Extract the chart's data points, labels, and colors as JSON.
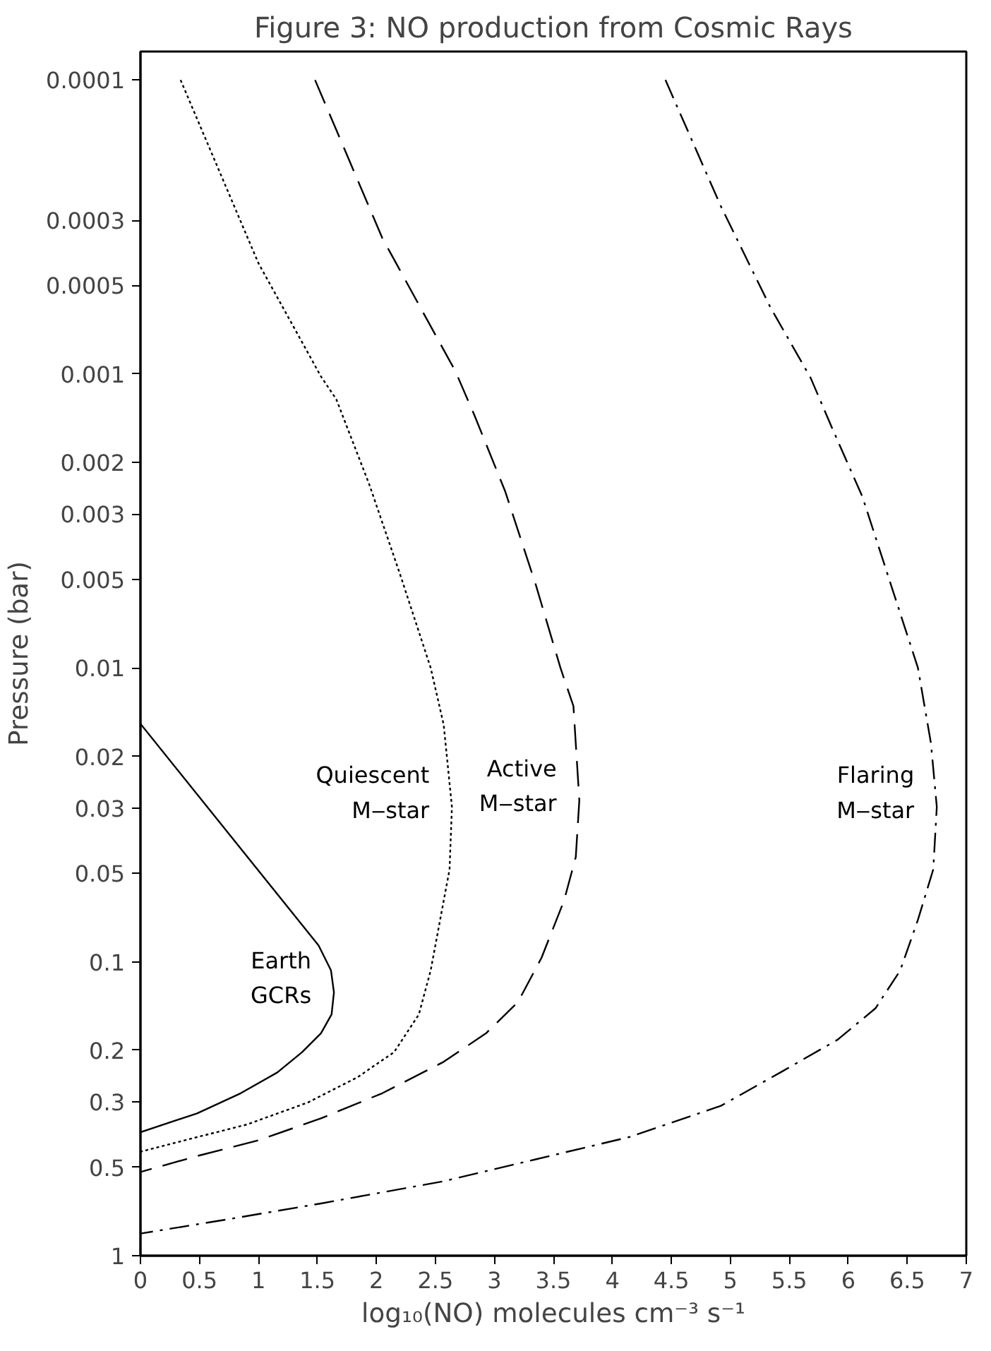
{
  "chart_data": {
    "type": "line",
    "title": "Figure 3: NO production from Cosmic Rays",
    "xlabel": "log₁₀(NO) molecules cm⁻³ s⁻¹",
    "ylabel": "Pressure (bar)",
    "log": "y",
    "grid": false,
    "marker": "none",
    "xlim": [
      0,
      7
    ],
    "xticks": [
      0,
      0.5,
      1,
      1.5,
      2,
      2.5,
      3,
      3.5,
      4,
      4.5,
      5,
      5.5,
      6,
      6.5,
      7
    ],
    "ylim": [
      1,
      8e-05
    ],
    "yticks": [
      0.0001,
      0.0003,
      0.0005,
      0.001,
      0.002,
      0.003,
      0.005,
      0.01,
      0.02,
      0.03,
      0.05,
      0.1,
      0.2,
      0.3,
      0.5,
      1
    ],
    "series": [
      {
        "name": "Earth\nGCRs",
        "color": "#000000",
        "line_style": "solid",
        "x": [
          0,
          1.51,
          1.615,
          1.64,
          1.62,
          1.53,
          1.37,
          1.16,
          0.85,
          0.48,
          0
        ],
        "values": [
          0.0155,
          0.088,
          0.107,
          0.127,
          0.151,
          0.175,
          0.203,
          0.238,
          0.28,
          0.328,
          0.38
        ]
      },
      {
        "name": "Quiescent\nM‒star",
        "color": "#000000",
        "line_style": "dotted",
        "x": [
          0.34,
          1.0,
          1.53,
          1.66,
          1.94,
          2.2,
          2.46,
          2.57,
          2.64,
          2.62,
          2.54,
          2.46,
          2.36,
          2.15,
          1.84,
          1.42,
          0.9,
          0.48,
          0
        ],
        "values": [
          0.0001,
          0.00042,
          0.00102,
          0.00122,
          0.00238,
          0.0048,
          0.01,
          0.0156,
          0.0297,
          0.0485,
          0.072,
          0.107,
          0.151,
          0.203,
          0.247,
          0.301,
          0.358,
          0.395,
          0.443
        ]
      },
      {
        "name": "Active\nM‒star",
        "color": "#000000",
        "line_style": "dashed",
        "x": [
          1.48,
          2.05,
          2.67,
          2.83,
          3.09,
          3.35,
          3.56,
          3.67,
          3.72,
          3.69,
          3.59,
          3.4,
          3.2,
          2.93,
          2.57,
          2.05,
          1.53,
          1.0,
          0.48,
          0
        ],
        "values": [
          0.0001,
          0.000345,
          0.00098,
          0.00138,
          0.0025,
          0.0052,
          0.01,
          0.0135,
          0.0282,
          0.044,
          0.062,
          0.0968,
          0.137,
          0.175,
          0.219,
          0.28,
          0.341,
          0.405,
          0.458,
          0.519
        ]
      },
      {
        "name": "Flaring\nM‒star",
        "color": "#000000",
        "line_style": "dashdot",
        "x": [
          4.45,
          4.92,
          5.34,
          5.68,
          5.86,
          6.12,
          6.38,
          6.59,
          6.7,
          6.75,
          6.72,
          6.59,
          6.44,
          6.23,
          5.91,
          5.44,
          4.92,
          4.14,
          3.35,
          2.57,
          1.53,
          0.74,
          0
        ],
        "values": [
          0.0001,
          0.000269,
          0.000594,
          0.00103,
          0.00152,
          0.00262,
          0.0055,
          0.01,
          0.018,
          0.0297,
          0.0485,
          0.072,
          0.107,
          0.144,
          0.184,
          0.236,
          0.309,
          0.395,
          0.47,
          0.558,
          0.664,
          0.752,
          0.841
        ]
      }
    ]
  }
}
